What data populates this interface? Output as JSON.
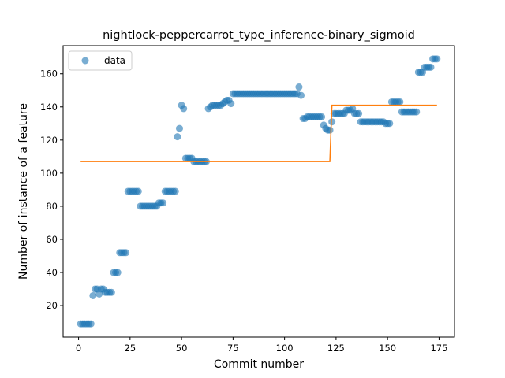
{
  "chart_data": {
    "type": "scatter",
    "title": "nightlock-peppercarrot_type_inference-binary_sigmoid",
    "xlabel": "Commit number",
    "ylabel": "Number of instance of a feature",
    "xlim": [
      -7.5,
      182.5
    ],
    "ylim": [
      1,
      177
    ],
    "xticks": [
      0,
      25,
      50,
      75,
      100,
      125,
      150,
      175
    ],
    "yticks": [
      20,
      40,
      60,
      80,
      100,
      120,
      140,
      160
    ],
    "grid": false,
    "legend": {
      "placement": "top-left",
      "entries": [
        "data"
      ]
    },
    "colors": {
      "data": "#1f77b4",
      "fit": "#ff7f0e"
    },
    "series": [
      {
        "name": "data",
        "kind": "scatter",
        "points": [
          [
            1,
            9
          ],
          [
            2,
            9
          ],
          [
            3,
            9
          ],
          [
            4,
            9
          ],
          [
            5,
            9
          ],
          [
            6,
            9
          ],
          [
            7,
            26
          ],
          [
            8,
            30
          ],
          [
            9,
            30
          ],
          [
            10,
            27
          ],
          [
            11,
            30
          ],
          [
            12,
            30
          ],
          [
            13,
            28
          ],
          [
            14,
            28
          ],
          [
            15,
            28
          ],
          [
            16,
            28
          ],
          [
            17,
            40
          ],
          [
            18,
            40
          ],
          [
            19,
            40
          ],
          [
            20,
            52
          ],
          [
            21,
            52
          ],
          [
            22,
            52
          ],
          [
            23,
            52
          ],
          [
            24,
            89
          ],
          [
            25,
            89
          ],
          [
            26,
            89
          ],
          [
            27,
            89
          ],
          [
            28,
            89
          ],
          [
            29,
            89
          ],
          [
            30,
            80
          ],
          [
            31,
            80
          ],
          [
            32,
            80
          ],
          [
            33,
            80
          ],
          [
            34,
            80
          ],
          [
            35,
            80
          ],
          [
            36,
            80
          ],
          [
            37,
            80
          ],
          [
            38,
            80
          ],
          [
            39,
            82
          ],
          [
            40,
            82
          ],
          [
            41,
            82
          ],
          [
            42,
            89
          ],
          [
            43,
            89
          ],
          [
            44,
            89
          ],
          [
            45,
            89
          ],
          [
            46,
            89
          ],
          [
            47,
            89
          ],
          [
            48,
            122
          ],
          [
            49,
            127
          ],
          [
            50,
            141
          ],
          [
            51,
            139
          ],
          [
            52,
            109
          ],
          [
            53,
            109
          ],
          [
            54,
            109
          ],
          [
            55,
            109
          ],
          [
            56,
            107
          ],
          [
            57,
            107
          ],
          [
            58,
            107
          ],
          [
            59,
            107
          ],
          [
            60,
            107
          ],
          [
            61,
            107
          ],
          [
            62,
            107
          ],
          [
            63,
            139
          ],
          [
            64,
            140
          ],
          [
            65,
            141
          ],
          [
            66,
            141
          ],
          [
            67,
            141
          ],
          [
            68,
            141
          ],
          [
            69,
            141
          ],
          [
            70,
            142
          ],
          [
            71,
            143
          ],
          [
            72,
            144
          ],
          [
            73,
            144
          ],
          [
            74,
            142
          ],
          [
            75,
            148
          ],
          [
            76,
            148
          ],
          [
            77,
            148
          ],
          [
            78,
            148
          ],
          [
            79,
            148
          ],
          [
            80,
            148
          ],
          [
            81,
            148
          ],
          [
            82,
            148
          ],
          [
            83,
            148
          ],
          [
            84,
            148
          ],
          [
            85,
            148
          ],
          [
            86,
            148
          ],
          [
            87,
            148
          ],
          [
            88,
            148
          ],
          [
            89,
            148
          ],
          [
            90,
            148
          ],
          [
            91,
            148
          ],
          [
            92,
            148
          ],
          [
            93,
            148
          ],
          [
            94,
            148
          ],
          [
            95,
            148
          ],
          [
            96,
            148
          ],
          [
            97,
            148
          ],
          [
            98,
            148
          ],
          [
            99,
            148
          ],
          [
            100,
            148
          ],
          [
            101,
            148
          ],
          [
            102,
            148
          ],
          [
            103,
            148
          ],
          [
            104,
            148
          ],
          [
            105,
            148
          ],
          [
            106,
            148
          ],
          [
            107,
            152
          ],
          [
            108,
            147
          ],
          [
            109,
            133
          ],
          [
            110,
            133
          ],
          [
            111,
            134
          ],
          [
            112,
            134
          ],
          [
            113,
            134
          ],
          [
            114,
            134
          ],
          [
            115,
            134
          ],
          [
            116,
            134
          ],
          [
            117,
            134
          ],
          [
            118,
            134
          ],
          [
            119,
            129
          ],
          [
            120,
            127
          ],
          [
            121,
            126
          ],
          [
            122,
            126
          ],
          [
            123,
            131
          ],
          [
            124,
            136
          ],
          [
            125,
            136
          ],
          [
            126,
            136
          ],
          [
            127,
            136
          ],
          [
            128,
            136
          ],
          [
            129,
            136
          ],
          [
            130,
            138
          ],
          [
            131,
            138
          ],
          [
            132,
            138
          ],
          [
            133,
            139
          ],
          [
            134,
            136
          ],
          [
            135,
            136
          ],
          [
            136,
            136
          ],
          [
            137,
            131
          ],
          [
            138,
            131
          ],
          [
            139,
            131
          ],
          [
            140,
            131
          ],
          [
            141,
            131
          ],
          [
            142,
            131
          ],
          [
            143,
            131
          ],
          [
            144,
            131
          ],
          [
            145,
            131
          ],
          [
            146,
            131
          ],
          [
            147,
            131
          ],
          [
            148,
            131
          ],
          [
            149,
            130
          ],
          [
            150,
            130
          ],
          [
            151,
            130
          ],
          [
            152,
            143
          ],
          [
            153,
            143
          ],
          [
            154,
            143
          ],
          [
            155,
            143
          ],
          [
            156,
            143
          ],
          [
            157,
            137
          ],
          [
            158,
            137
          ],
          [
            159,
            137
          ],
          [
            160,
            137
          ],
          [
            161,
            137
          ],
          [
            162,
            137
          ],
          [
            163,
            137
          ],
          [
            164,
            137
          ],
          [
            165,
            161
          ],
          [
            166,
            161
          ],
          [
            167,
            161
          ],
          [
            168,
            164
          ],
          [
            169,
            164
          ],
          [
            170,
            164
          ],
          [
            171,
            164
          ],
          [
            172,
            169
          ],
          [
            173,
            169
          ],
          [
            174,
            169
          ]
        ]
      },
      {
        "kind": "line",
        "points": [
          [
            1,
            107
          ],
          [
            122,
            107
          ],
          [
            123,
            141
          ],
          [
            174,
            141
          ]
        ]
      }
    ]
  }
}
